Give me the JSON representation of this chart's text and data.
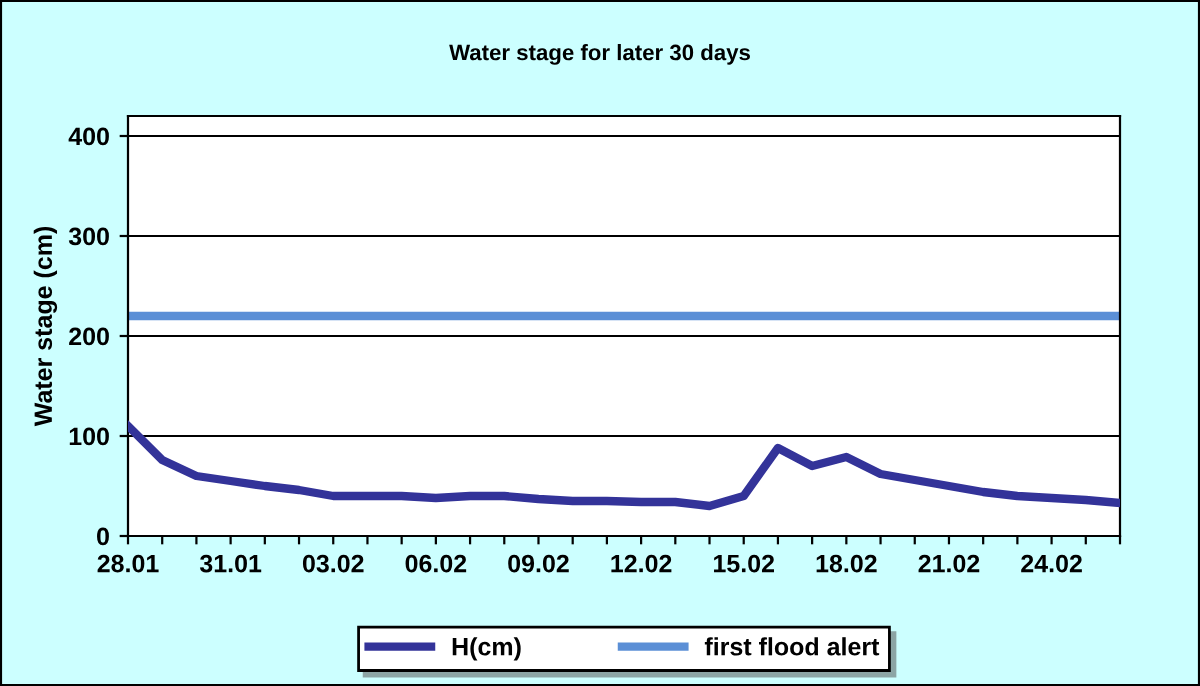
{
  "chart_data": {
    "type": "line",
    "title": "Water stage for later 30 days",
    "ylabel": "Water stage (cm)",
    "categories": [
      "28.01",
      null,
      null,
      "31.01",
      null,
      null,
      "03.02",
      null,
      null,
      "06.02",
      null,
      null,
      "09.02",
      null,
      null,
      "12.02",
      null,
      null,
      "15.02",
      null,
      null,
      "18.02",
      null,
      null,
      "21.02",
      null,
      null,
      "24.02",
      null,
      null
    ],
    "series": [
      {
        "name": "H(cm)",
        "color": "#333399",
        "values": [
          110,
          76,
          60,
          55,
          50,
          46,
          40,
          40,
          40,
          38,
          40,
          40,
          37,
          35,
          35,
          34,
          34,
          30,
          40,
          88,
          70,
          79,
          62,
          56,
          50,
          44,
          40,
          38,
          36,
          33
        ]
      }
    ],
    "ref_lines": [
      {
        "axis": "y",
        "value": 220,
        "label": "first flood alert",
        "color": "#5b8fd6"
      }
    ],
    "ylim": [
      0,
      420
    ],
    "yticks": [
      0,
      100,
      200,
      300,
      400
    ],
    "grid": "y",
    "legend": "bottom",
    "marker": "none",
    "line_style": "solid"
  }
}
